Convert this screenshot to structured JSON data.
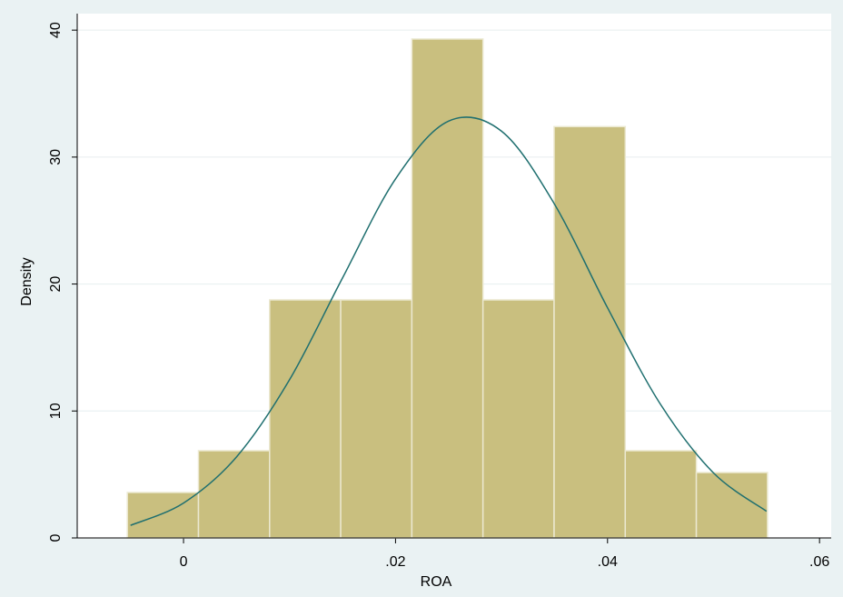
{
  "chart_data": {
    "type": "histogram",
    "x_label": "ROA",
    "y_label": "Density",
    "bins": [
      -0.0053,
      0.00141,
      0.00812,
      0.01483,
      0.02154,
      0.02825,
      0.03496,
      0.04167,
      0.04838,
      0.05509
    ],
    "values": [
      3.58,
      6.87,
      18.75,
      18.75,
      39.3,
      18.75,
      32.4,
      6.87,
      5.15
    ],
    "color": "#c9bf7f",
    "edge_color": "#ebe8d0",
    "density_curve": {
      "color": "#1f6f6f",
      "x": [
        -0.005,
        0,
        0.005,
        0.01,
        0.015,
        0.02,
        0.025,
        0.03,
        0.035,
        0.04,
        0.045,
        0.05,
        0.055
      ],
      "values": [
        0.99,
        2.75,
        6.38,
        12.46,
        20.48,
        28.28,
        32.83,
        32.04,
        26.29,
        18.13,
        10.52,
        5.12,
        2.1
      ]
    },
    "xlim": [
      -0.01003,
      0.0611
    ],
    "ylim": [
      0,
      41.3
    ],
    "xticks": [
      0,
      {
        "value": 0.02,
        "label": ".02"
      },
      {
        "value": 0.04,
        "label": ".04"
      },
      {
        "value": 0.06,
        "label": ".06"
      }
    ],
    "yticks": [
      0,
      10,
      20,
      30,
      40
    ],
    "grid": true
  }
}
